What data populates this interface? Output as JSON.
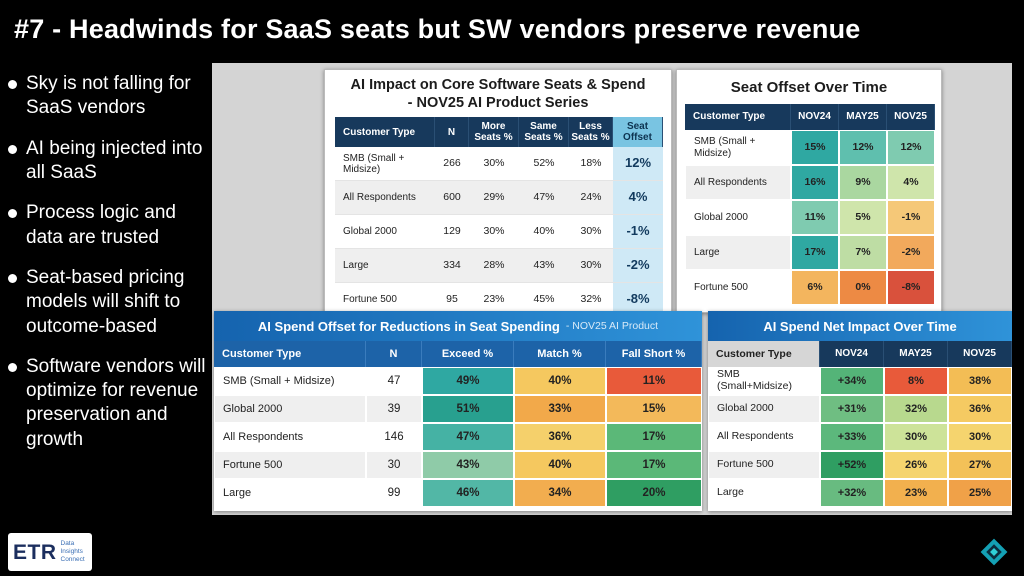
{
  "title": "#7 - Headwinds for SaaS seats but SW vendors preserve revenue",
  "sidebar": {
    "bullets": [
      "Sky is not falling for SaaS vendors",
      "AI being injected into all SaaS",
      "Process logic and data are trusted",
      "Seat-based pricing models will shift to outcome-based",
      "Software vendors will optimize for revenue preservation and growth"
    ]
  },
  "logo": {
    "text": "ETR",
    "tag1": "Data",
    "tag2": "Insights",
    "tag3": "Connect"
  },
  "tables": {
    "impact": {
      "title_line1": "AI Impact on Core Software Seats & Spend",
      "title_line2": "- NOV25 AI Product Series",
      "headers": [
        "Customer Type",
        "N",
        "More Seats %",
        "Same Seats %",
        "Less Seats %",
        "Seat Offset"
      ],
      "rows": [
        [
          "SMB (Small + Midsize)",
          "266",
          "30%",
          "52%",
          "18%",
          {
            "v": "12%",
            "bg": "#cfe9f6",
            "fg": "#123a5e",
            "b": true
          }
        ],
        [
          "All Respondents",
          "600",
          "29%",
          "47%",
          "24%",
          {
            "v": "4%",
            "bg": "#cfe9f6",
            "fg": "#123a5e",
            "b": true
          }
        ],
        [
          "Global 2000",
          "129",
          "30%",
          "40%",
          "30%",
          {
            "v": "-1%",
            "bg": "#cfe9f6",
            "fg": "#123a5e",
            "b": true
          }
        ],
        [
          "Large",
          "334",
          "28%",
          "43%",
          "30%",
          {
            "v": "-2%",
            "bg": "#cfe9f6",
            "fg": "#123a5e",
            "b": true
          }
        ],
        [
          "Fortune 500",
          "95",
          "23%",
          "45%",
          "32%",
          {
            "v": "-8%",
            "bg": "#cfe9f6",
            "fg": "#123a5e",
            "b": true
          }
        ]
      ]
    },
    "seat_offset": {
      "title": "Seat Offset Over Time",
      "headers": [
        "Customer Type",
        "NOV24",
        "MAY25",
        "NOV25"
      ],
      "rows": [
        [
          "SMB (Small + Midsize)",
          {
            "v": "15%",
            "bg": "#2fa8a2",
            "b": true
          },
          {
            "v": "12%",
            "bg": "#5fbfae",
            "b": true
          },
          {
            "v": "12%",
            "bg": "#7fcbb0",
            "b": true
          }
        ],
        [
          "All Respondents",
          {
            "v": "16%",
            "bg": "#2fa8a2",
            "b": true
          },
          {
            "v": "9%",
            "bg": "#aad7a0",
            "b": true
          },
          {
            "v": "4%",
            "bg": "#cfe5ab",
            "b": true
          }
        ],
        [
          "Global 2000",
          {
            "v": "11%",
            "bg": "#7fcbb0",
            "b": true
          },
          {
            "v": "5%",
            "bg": "#cfe5ab",
            "b": true
          },
          {
            "v": "-1%",
            "bg": "#f5c878",
            "b": true
          }
        ],
        [
          "Large",
          {
            "v": "17%",
            "bg": "#2fa8a2",
            "b": true
          },
          {
            "v": "7%",
            "bg": "#bedda4",
            "b": true
          },
          {
            "v": "-2%",
            "bg": "#f2a95c",
            "b": true
          }
        ],
        [
          "Fortune 500",
          {
            "v": "6%",
            "bg": "#f3b55e",
            "b": true
          },
          {
            "v": "0%",
            "bg": "#ed8a44",
            "b": true
          },
          {
            "v": "-8%",
            "bg": "#d9513c",
            "b": true
          }
        ]
      ]
    },
    "spend_offset": {
      "title": "AI Spend Offset for Reductions in Seat Spending",
      "subtitle": "- NOV25 AI Product",
      "headers": [
        "Customer Type",
        "N",
        "Exceed %",
        "Match %",
        "Fall Short %"
      ],
      "rows": [
        [
          "SMB (Small + Midsize)",
          "47",
          {
            "v": "49%",
            "bg": "#2fa8a2",
            "b": true
          },
          {
            "v": "40%",
            "bg": "#f5c85f",
            "b": true
          },
          {
            "v": "11%",
            "bg": "#e85a3a",
            "b": true
          }
        ],
        [
          "Global 2000",
          "39",
          {
            "v": "51%",
            "bg": "#28a08f",
            "b": true
          },
          {
            "v": "33%",
            "bg": "#f2a94a",
            "b": true
          },
          {
            "v": "15%",
            "bg": "#f3b95a",
            "b": true
          }
        ],
        [
          "All Respondents",
          "146",
          {
            "v": "47%",
            "bg": "#45b2a4",
            "b": true
          },
          {
            "v": "36%",
            "bg": "#f5d06b",
            "b": true
          },
          {
            "v": "17%",
            "bg": "#5bb878",
            "b": true
          }
        ],
        [
          "Fortune 500",
          "30",
          {
            "v": "43%",
            "bg": "#8fcba8",
            "b": true
          },
          {
            "v": "40%",
            "bg": "#f5c85f",
            "b": true
          },
          {
            "v": "17%",
            "bg": "#5bb878",
            "b": true
          }
        ],
        [
          "Large",
          "99",
          {
            "v": "46%",
            "bg": "#52b7a6",
            "b": true
          },
          {
            "v": "34%",
            "bg": "#f2ad4f",
            "b": true
          },
          {
            "v": "20%",
            "bg": "#2f9e62",
            "b": true
          }
        ]
      ]
    },
    "net_impact": {
      "title": "AI Spend Net Impact Over Time",
      "headers": [
        "Customer Type",
        "NOV24",
        "MAY25",
        "NOV25"
      ],
      "rows": [
        [
          "SMB (Small+Midsize)",
          {
            "v": "+34%",
            "bg": "#54b478",
            "b": true
          },
          {
            "v": "8%",
            "bg": "#e85a3a",
            "b": true
          },
          {
            "v": "38%",
            "bg": "#f3bd55",
            "b": true
          }
        ],
        [
          "Global 2000",
          {
            "v": "+31%",
            "bg": "#6fbe82",
            "b": true
          },
          {
            "v": "32%",
            "bg": "#b8d98e",
            "b": true
          },
          {
            "v": "36%",
            "bg": "#f5ca62",
            "b": true
          }
        ],
        [
          "All Respondents",
          {
            "v": "+33%",
            "bg": "#5cb87c",
            "b": true
          },
          {
            "v": "30%",
            "bg": "#cde399",
            "b": true
          },
          {
            "v": "30%",
            "bg": "#f5d46e",
            "b": true
          }
        ],
        [
          "Fortune 500",
          {
            "v": "+52%",
            "bg": "#2f9e62",
            "b": true
          },
          {
            "v": "26%",
            "bg": "#f5d46e",
            "b": true
          },
          {
            "v": "27%",
            "bg": "#f3c158",
            "b": true
          }
        ],
        [
          "Large",
          {
            "v": "+32%",
            "bg": "#68bb80",
            "b": true
          },
          {
            "v": "23%",
            "bg": "#f2b04e",
            "b": true
          },
          {
            "v": "25%",
            "bg": "#f0a148",
            "b": true
          }
        ]
      ]
    }
  },
  "colors": {
    "accent_blue": "#1563ae",
    "header_navy": "#17395c",
    "offset_highlight": "#cfe9f6",
    "teal": "#2fa8a2",
    "orange": "#f2a94a",
    "red": "#e85a3a",
    "green": "#2f9e62"
  }
}
